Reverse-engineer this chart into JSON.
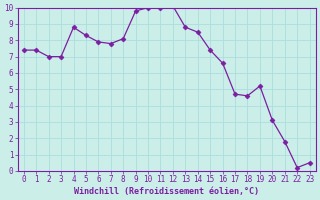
{
  "x": [
    0,
    1,
    2,
    3,
    4,
    5,
    6,
    7,
    8,
    9,
    10,
    11,
    12,
    13,
    14,
    15,
    16,
    17,
    18,
    19,
    20,
    21,
    22,
    23
  ],
  "y": [
    7.4,
    7.4,
    7.0,
    7.0,
    8.8,
    8.3,
    7.9,
    7.8,
    8.1,
    9.8,
    10.0,
    10.0,
    10.1,
    8.8,
    8.5,
    7.4,
    6.6,
    4.7,
    4.6,
    5.2,
    3.1,
    1.8,
    0.2,
    0.5
  ],
  "line_color": "#7b1fa2",
  "marker": "D",
  "marker_size": 2.5,
  "bg_color": "#cceee8",
  "grid_color": "#aadddd",
  "xlabel": "Windchill (Refroidissement éolien,°C)",
  "xlabel_color": "#7b1fa2",
  "tick_color": "#7b1fa2",
  "xlim": [
    -0.5,
    23.5
  ],
  "ylim": [
    0,
    10
  ],
  "yticks": [
    0,
    1,
    2,
    3,
    4,
    5,
    6,
    7,
    8,
    9,
    10
  ],
  "xticks": [
    0,
    1,
    2,
    3,
    4,
    5,
    6,
    7,
    8,
    9,
    10,
    11,
    12,
    13,
    14,
    15,
    16,
    17,
    18,
    19,
    20,
    21,
    22,
    23
  ],
  "tick_label_fontsize": 5.5,
  "xlabel_fontsize": 6.0,
  "spine_color": "#7b1fa2"
}
